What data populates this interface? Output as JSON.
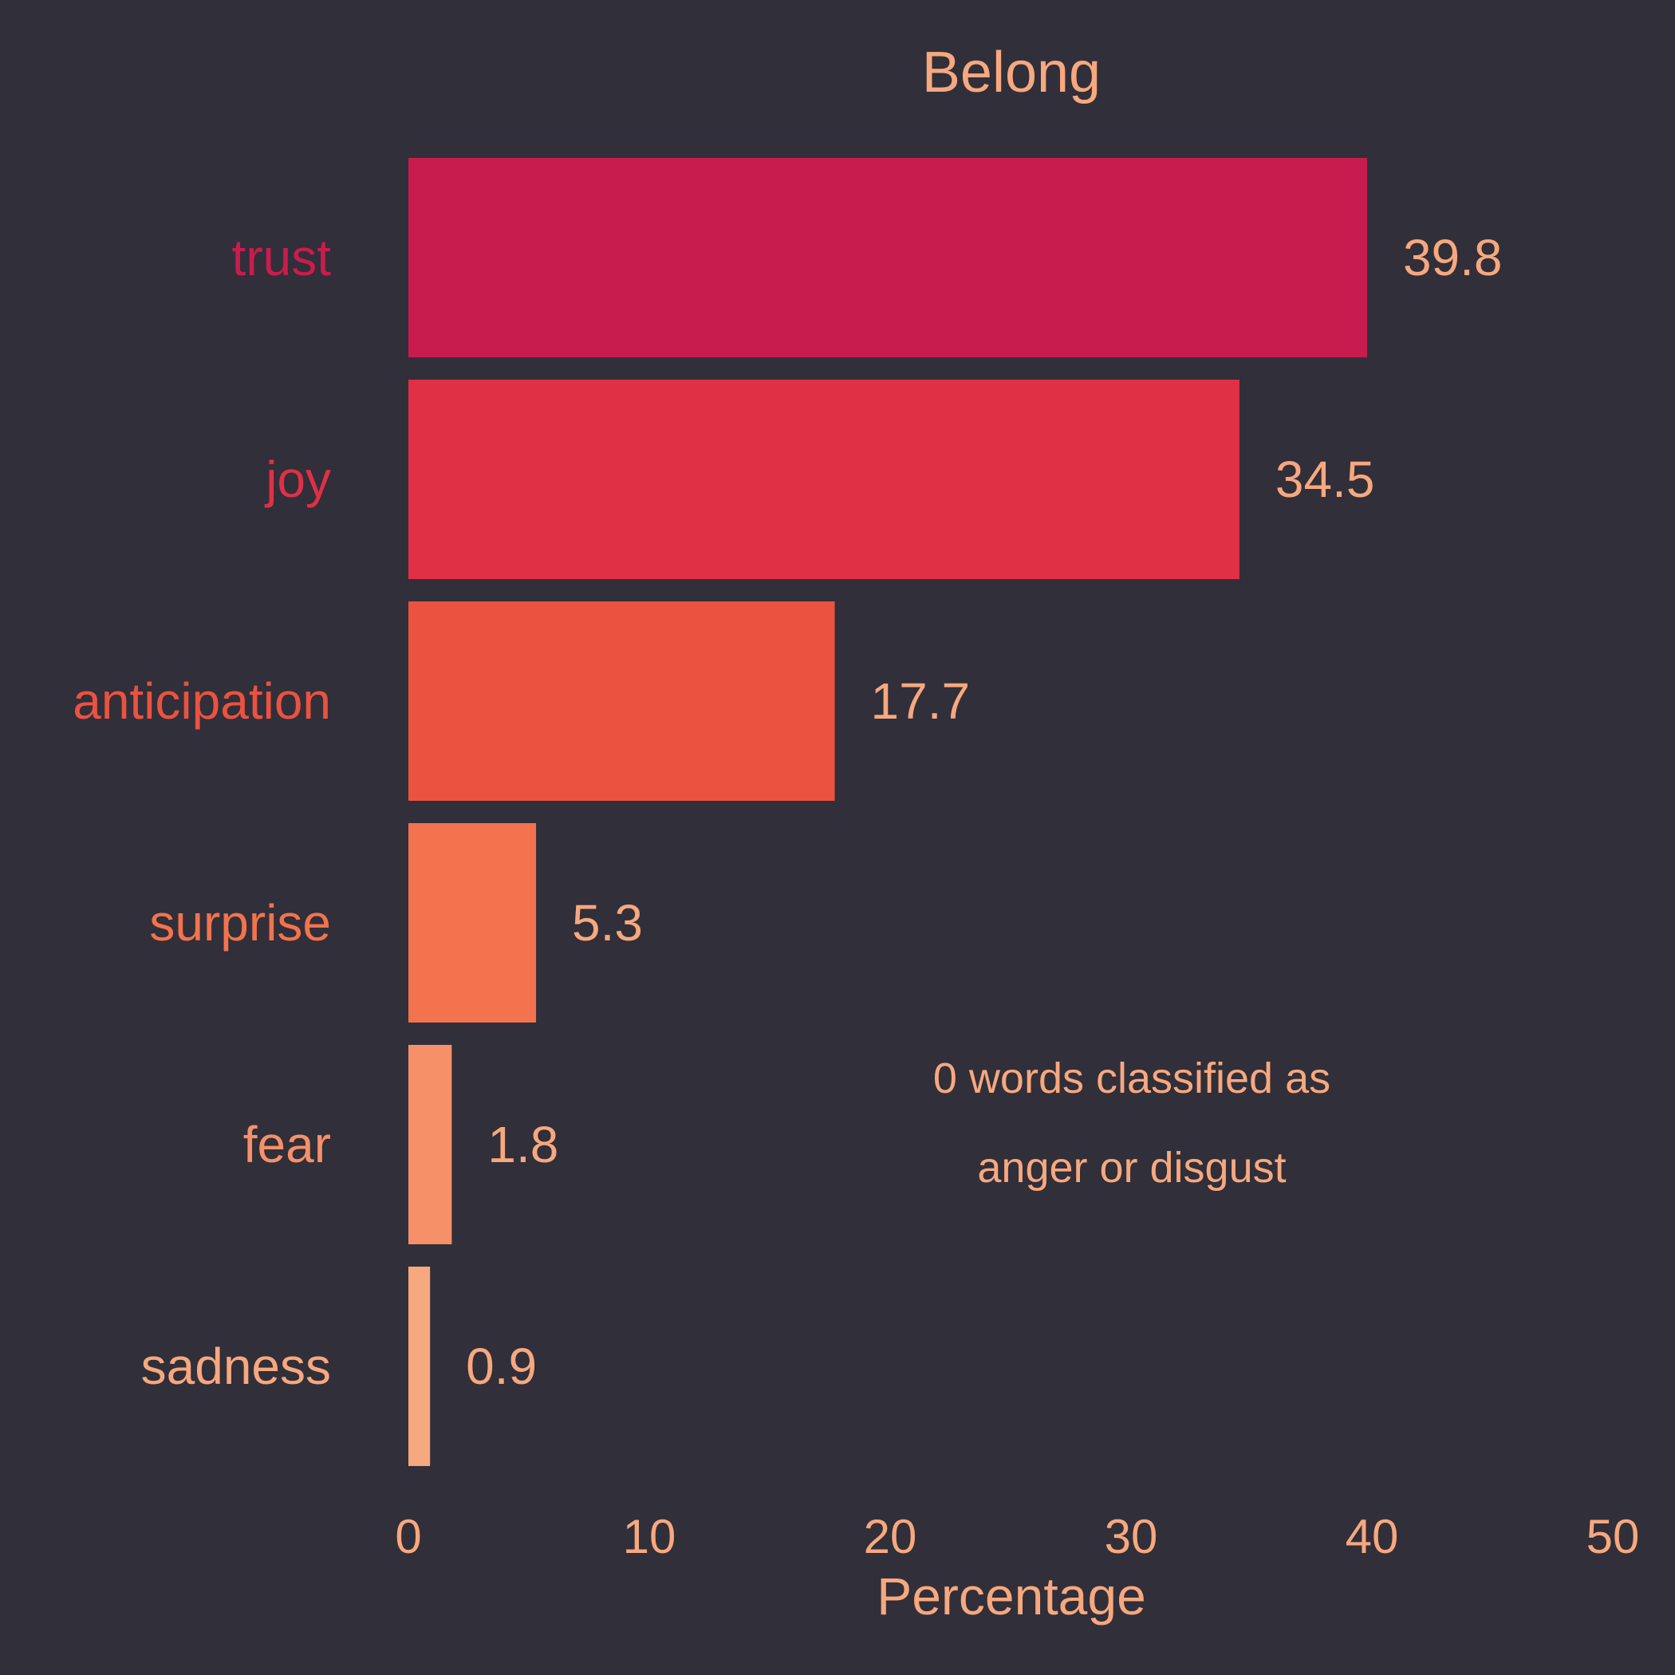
{
  "chart_data": {
    "type": "bar",
    "orientation": "horizontal",
    "title": "Belong",
    "xlabel": "Percentage",
    "ylabel": "",
    "xlim": [
      0,
      50
    ],
    "xticks": [
      "0",
      "10",
      "20",
      "30",
      "40",
      "50"
    ],
    "grid": false,
    "legend": "none",
    "categories": [
      "trust",
      "joy",
      "anticipation",
      "surprise",
      "fear",
      "sadness"
    ],
    "values": [
      39.8,
      34.5,
      17.7,
      5.3,
      1.8,
      0.9
    ],
    "value_labels": [
      "39.8",
      "34.5",
      "17.7",
      "5.3",
      "1.8",
      "0.9"
    ],
    "bar_colors": [
      "#c91c4e",
      "#e03045",
      "#eb5240",
      "#f2734e",
      "#f59069",
      "#f6a87f"
    ],
    "annotation": [
      "0 words classified as",
      "anger or disgust"
    ]
  },
  "colors": {
    "background": "#312f39",
    "text": "#f6a87f"
  }
}
